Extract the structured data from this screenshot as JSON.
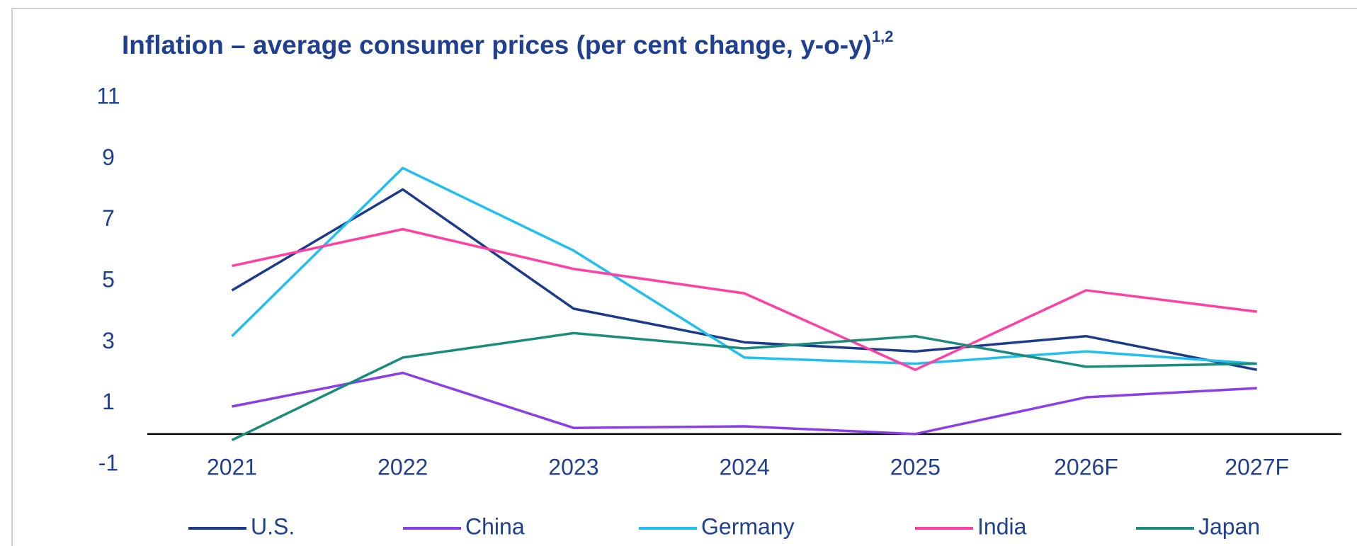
{
  "chart_data": {
    "type": "line",
    "title": "Inflation – average consumer prices (per cent change, y-o-y)",
    "title_superscript": "1,2",
    "categories": [
      "2021",
      "2022",
      "2023",
      "2024",
      "2025",
      "2026F",
      "2027F"
    ],
    "series": [
      {
        "name": "U.S.",
        "color": "#1b3a8c",
        "values": [
          4.7,
          8.0,
          4.1,
          3.0,
          2.7,
          3.2,
          2.1
        ]
      },
      {
        "name": "China",
        "color": "#8a3ee8",
        "values": [
          0.9,
          2.0,
          0.2,
          0.25,
          0.0,
          1.2,
          1.5
        ]
      },
      {
        "name": "Germany",
        "color": "#1fc0ef",
        "values": [
          3.2,
          8.7,
          6.0,
          2.5,
          2.3,
          2.7,
          2.3
        ]
      },
      {
        "name": "India",
        "color": "#ff3fa4",
        "values": [
          5.5,
          6.7,
          5.4,
          4.6,
          2.1,
          4.7,
          4.0
        ]
      },
      {
        "name": "Japan",
        "color": "#1a8c7c",
        "values": [
          -0.2,
          2.5,
          3.3,
          2.8,
          3.2,
          2.2,
          2.3
        ]
      }
    ],
    "ylim": [
      -1,
      11
    ],
    "yticks": [
      -1,
      1,
      3,
      5,
      7,
      9,
      11
    ],
    "grid": false,
    "legend": "bottom"
  }
}
